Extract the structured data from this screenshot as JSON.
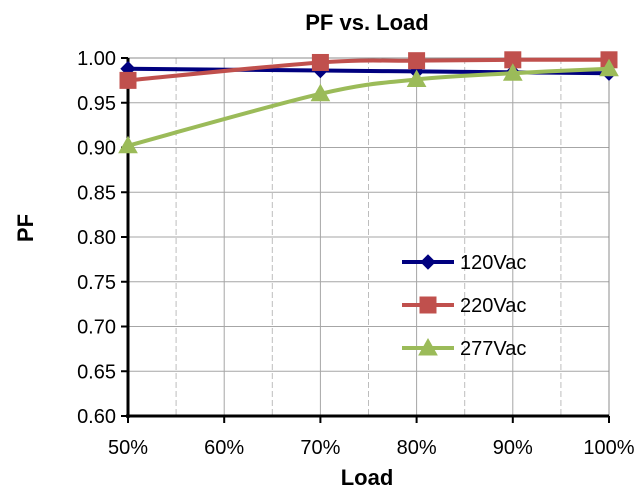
{
  "chart_data": {
    "type": "line",
    "title": "PF vs. Load",
    "xlabel": "Load",
    "ylabel": "PF",
    "x": [
      0.5,
      0.7,
      0.8,
      0.9,
      1.0
    ],
    "x_tick_values": [
      0.5,
      0.6,
      0.7,
      0.8,
      0.9,
      1.0
    ],
    "x_tick_labels": [
      "50%",
      "60%",
      "70%",
      "80%",
      "90%",
      "100%"
    ],
    "xlim": [
      0.5,
      1.0
    ],
    "ylim": [
      0.6,
      1.0
    ],
    "y_tick_values": [
      0.6,
      0.65,
      0.7,
      0.75,
      0.8,
      0.85,
      0.9,
      0.95,
      1.0
    ],
    "y_tick_labels": [
      "0.60",
      "0.65",
      "0.70",
      "0.75",
      "0.80",
      "0.85",
      "0.90",
      "0.95",
      "1.00"
    ],
    "grid": true,
    "legend_position": "lower-right",
    "series": [
      {
        "name": "120Vac",
        "values": [
          0.988,
          0.986,
          0.985,
          0.984,
          0.983
        ],
        "color": "#00007f",
        "marker": "diamond"
      },
      {
        "name": "220Vac",
        "values": [
          0.975,
          0.995,
          0.997,
          0.998,
          0.998
        ],
        "color": "#c0504d",
        "marker": "square"
      },
      {
        "name": "277Vac",
        "values": [
          0.902,
          0.96,
          0.976,
          0.983,
          0.988
        ],
        "color": "#9bbb59",
        "marker": "triangle"
      }
    ]
  }
}
